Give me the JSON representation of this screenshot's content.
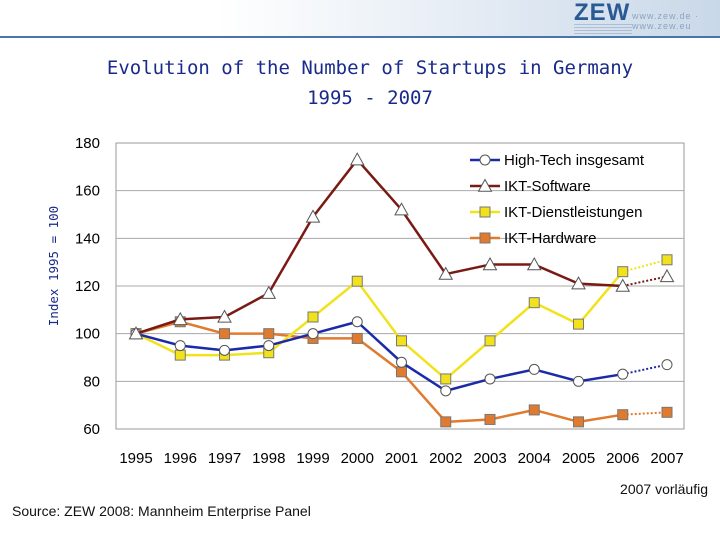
{
  "header": {
    "logo_text": "ZEW",
    "url_text": "www.zew.de · www.zew.eu"
  },
  "chart_data": {
    "type": "line",
    "title": [
      "Evolution of the Number of Startups in Germany",
      "1995 - 2007"
    ],
    "xlabel": "",
    "ylabel": "Index 1995 = 100",
    "ylim": [
      60,
      180
    ],
    "yticks": [
      60,
      80,
      100,
      120,
      140,
      160,
      180
    ],
    "x": [
      "1995",
      "1996",
      "1997",
      "1998",
      "1999",
      "2000",
      "2001",
      "2002",
      "2003",
      "2004",
      "2005",
      "2006",
      "2007"
    ],
    "grid": "horizontal",
    "legend_position": "top-right",
    "series": [
      {
        "name": "High-Tech insgesamt",
        "color": "#1a2aa8",
        "marker": "circle",
        "values": [
          100,
          95,
          93,
          95,
          100,
          105,
          88,
          76,
          81,
          85,
          80,
          83,
          87
        ]
      },
      {
        "name": "IKT-Software",
        "color": "#7a1a14",
        "marker": "triangle",
        "values": [
          100,
          106,
          107,
          117,
          149,
          173,
          152,
          125,
          129,
          129,
          121,
          120,
          124
        ]
      },
      {
        "name": "IKT-Dienstleistungen",
        "color": "#f2e21c",
        "marker": "square",
        "values": [
          100,
          91,
          91,
          92,
          107,
          122,
          97,
          81,
          97,
          113,
          104,
          126,
          131
        ]
      },
      {
        "name": "IKT-Hardware",
        "color": "#e07a2e",
        "marker": "square",
        "values": [
          100,
          105,
          100,
          100,
          98,
          98,
          84,
          63,
          64,
          68,
          63,
          66,
          67
        ]
      }
    ]
  },
  "footer": {
    "note": "2007 vorläufig",
    "source": "Source: ZEW 2008: Mannheim Enterprise Panel"
  }
}
